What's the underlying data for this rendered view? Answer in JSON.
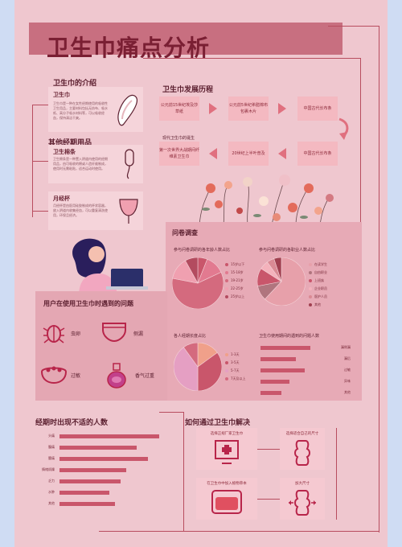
{
  "title": "卫生巾痛点分析",
  "intro": {
    "heading": "卫生巾的介绍",
    "card_title": "卫生巾",
    "card_text": "卫生巾是一种在女性经期使用的吸收性卫生用品，主要材料包括无纺布、吸水纸、高分子吸水材料等，可以吸收经血，保持清洁干爽。"
  },
  "others": {
    "heading": "其他经期用品",
    "tampon_title": "卫生棉条",
    "tampon_text": "卫生棉条是一种置入阴道内使用的经期用品，由可吸收的棉或人造纤维制成，使用时无需粘贴，适合运动时使用。",
    "cup_title": "月经杯",
    "cup_text": "月经杯是由医用硅胶制成的杯状容器，放入阴道内收集经血，可以重复清洗使用，环保且经济。"
  },
  "history": {
    "heading": "卫生巾发展历程",
    "items": [
      "公元前15世纪埃及莎草纸",
      "公元前5世纪希腊棉布包裹木片",
      "中国古代长布条",
      "第一次世界大战期间纤维素卫生巾",
      "20世纪上半叶普及",
      "近现代卫生巾"
    ],
    "note": "现代卫生巾的诞生"
  },
  "survey": {
    "heading": "问卷调查",
    "chart1_title": "参与问卷调研的各年龄人数占比",
    "chart1_legend": [
      "15岁以下",
      "15-18岁",
      "19-21岁",
      "22-25岁",
      "25岁以上"
    ],
    "chart2_title": "参与问卷调研的各职业人数占比",
    "chart2_legend": [
      "在读学生",
      "自由职业",
      "上班族",
      "企业职员",
      "医护人员",
      "其他"
    ],
    "chart3_title": "各人经期长度占比",
    "chart3_legend": [
      "1-3天",
      "3-5天",
      "5-7天",
      "7天及以上"
    ],
    "chart4_title": "卫生巾使用期间的遇到的问题人数",
    "chart4_labels": [
      "漏侧漏",
      "漏后",
      "过敏",
      "异味",
      "其他"
    ]
  },
  "problems": {
    "heading": "用户在使用卫生巾时遇到的问题",
    "items": [
      "虫卵",
      "侧漏",
      "过敏",
      "香气过重"
    ]
  },
  "discomfort": {
    "heading": "经期时出现不适的人数",
    "labels": [
      "头痛",
      "腹痛",
      "腰痛",
      "情绪烦躁",
      "乏力",
      "水肿",
      "其他"
    ]
  },
  "solutions": {
    "heading": "如何通过卫生巾解决",
    "items": [
      "选择正规厂家卫生巾",
      "选择适合自己的尺寸",
      "在卫生巾中加入植物草本",
      "加大尺寸"
    ]
  },
  "colors": {
    "bg": "#efc7cf",
    "accent": "#c9566b",
    "dark": "#7a1f33"
  },
  "chart_data": [
    {
      "type": "pie",
      "title": "参与问卷调研的各年龄人数占比",
      "categories": [
        "15岁以下",
        "15-18岁",
        "19-21岁",
        "22-25岁",
        "25岁以上"
      ],
      "values": [
        6,
        12,
        60,
        14,
        8
      ]
    },
    {
      "type": "pie",
      "title": "参与问卷调研的各职业人数占比",
      "categories": [
        "在读学生",
        "自由职业",
        "上班族",
        "企业职员",
        "医护人员",
        "其他"
      ],
      "values": [
        62,
        10,
        12,
        6,
        5,
        5
      ]
    },
    {
      "type": "pie",
      "title": "各人经期长度占比",
      "categories": [
        "1-3天",
        "3-5天",
        "5-7天",
        "7天及以上"
      ],
      "values": [
        15,
        35,
        40,
        10
      ]
    },
    {
      "type": "bar",
      "title": "卫生巾使用期间的遇到的问题人数",
      "categories": [
        "漏侧漏",
        "漏后",
        "过敏",
        "异味",
        "其他"
      ],
      "values": [
        85,
        60,
        75,
        50,
        35
      ]
    },
    {
      "type": "bar",
      "title": "经期时出现不适的人数",
      "categories": [
        "头痛",
        "腹痛",
        "腰痛",
        "情绪烦躁",
        "乏力",
        "水肿",
        "其他"
      ],
      "values": [
        90,
        70,
        80,
        60,
        55,
        45,
        50
      ]
    }
  ]
}
